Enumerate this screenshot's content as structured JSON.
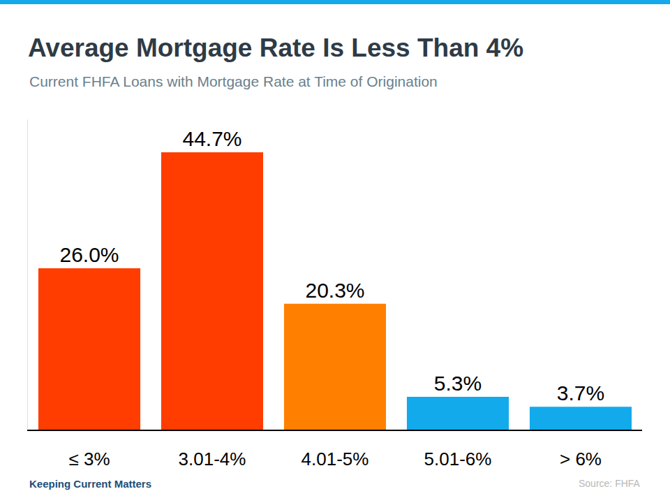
{
  "chart_data": {
    "type": "bar",
    "title": "Average Mortgage Rate Is Less Than 4%",
    "subtitle": "Current FHFA Loans with Mortgage Rate at Time of Origination",
    "categories": [
      "≤ 3%",
      "3.01-4%",
      "4.01-5%",
      "5.01-6%",
      "> 6%"
    ],
    "values": [
      26.0,
      44.7,
      20.3,
      5.3,
      3.7
    ],
    "value_labels": [
      "26.0%",
      "44.7%",
      "20.3%",
      "5.3%",
      "3.7%"
    ],
    "colors": [
      "#ff3d00",
      "#ff3d00",
      "#ff8000",
      "#12aaeb",
      "#12aaeb"
    ],
    "data_labels": true,
    "tick_labels": "x",
    "grid": false,
    "ylim": [
      0,
      50
    ],
    "annotations": [
      "Keeping Current Matters",
      "Source: FHFA"
    ]
  }
}
